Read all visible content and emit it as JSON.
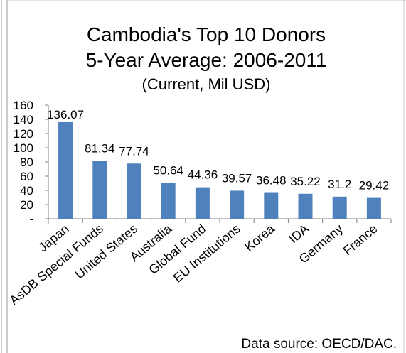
{
  "chart_data": {
    "type": "bar",
    "title": "Cambodia's Top 10 Donors",
    "subtitle": "5-Year Average: 2006-2011",
    "unit_note": "(Current, Mil USD)",
    "xlabel": "",
    "ylabel": "",
    "categories": [
      "Japan",
      "AsDB Special Funds",
      "United States",
      "Australia",
      "Global Fund",
      "EU Institutions",
      "Korea",
      "IDA",
      "Germany",
      "France"
    ],
    "values": [
      136.07,
      81.34,
      77.74,
      50.64,
      44.36,
      39.57,
      36.48,
      35.22,
      31.2,
      29.42
    ],
    "value_labels": [
      "136.07",
      "81.34",
      "77.74",
      "50.64",
      "44.36",
      "39.57",
      "36.48",
      "35.22",
      "31.2",
      "29.42"
    ],
    "ylim": [
      0,
      160
    ],
    "yticks": [
      0,
      20,
      40,
      60,
      80,
      100,
      120,
      140,
      160
    ],
    "ytick_labels": [
      "-",
      "20",
      "40",
      "60",
      "80",
      "100",
      "120",
      "140",
      "160"
    ],
    "grid": false,
    "legend": "none",
    "bar_color": "#4f81bd",
    "source": "Data source: OECD/DAC."
  }
}
